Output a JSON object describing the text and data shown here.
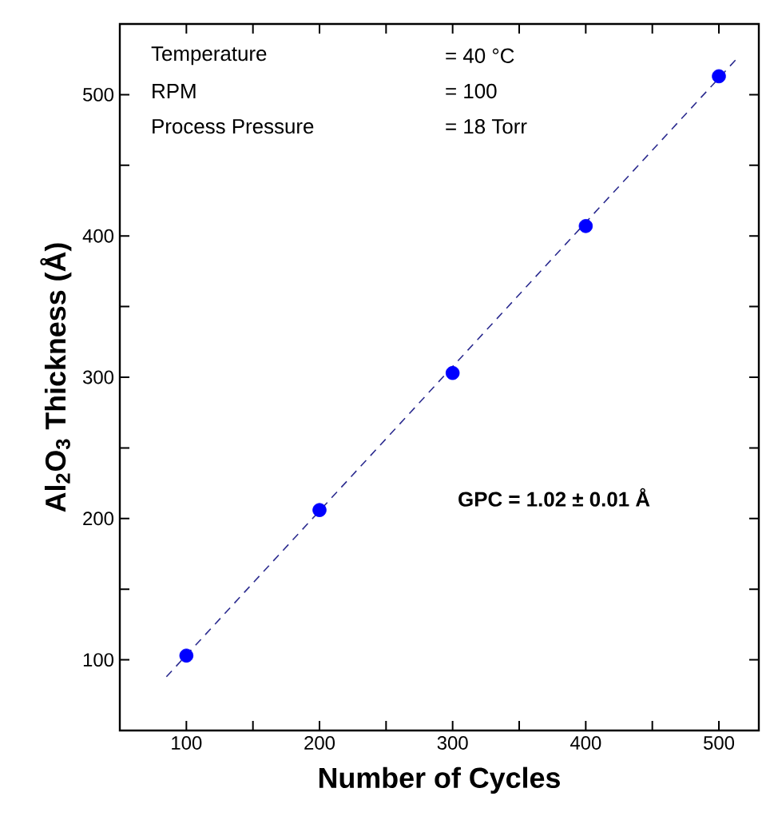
{
  "chart_data": {
    "type": "scatter",
    "xlabel": "Number of Cycles",
    "ylabel": "Al$_{2}$O$_{3}$ Thickness (Å)",
    "x": [
      100,
      200,
      300,
      400,
      500
    ],
    "series": [
      {
        "color": "#0000ff",
        "marker": "circle",
        "values": [
          103,
          206,
          303,
          407,
          513
        ]
      },
      {
        "type": "line",
        "color": "#2b2b8f",
        "line_style": "dashed",
        "marker": "none",
        "x": [
          85,
          515
        ],
        "values": [
          88,
          527
        ]
      }
    ],
    "xlim": [
      50,
      530
    ],
    "ylim": [
      50,
      550
    ],
    "xticks": [
      100,
      {
        "value": 150,
        "label": null
      },
      200,
      {
        "value": 250,
        "label": null
      },
      300,
      {
        "value": 350,
        "label": null
      },
      400,
      {
        "value": 450,
        "label": null
      },
      500
    ],
    "yticks": [
      100,
      {
        "value": 150,
        "label": null
      },
      200,
      {
        "value": 250,
        "label": null
      },
      300,
      {
        "value": 350,
        "label": null
      },
      400,
      {
        "value": 450,
        "label": null
      },
      500
    ],
    "annotations": [
      "Temperature",
      "= 40 °C",
      "RPM",
      "= 100",
      "Process Pressure",
      "= 18 Torr",
      "GPC = 1.02 ± 0.01 Å"
    ]
  }
}
